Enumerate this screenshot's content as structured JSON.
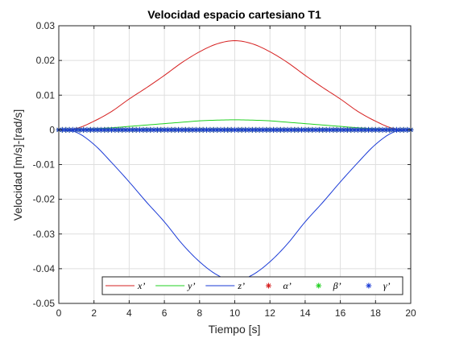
{
  "chart_data": {
    "type": "line",
    "title": "Velocidad espacio cartesiano T1",
    "xlabel": "Tiempo [s]",
    "ylabel": "Velocidad [m/s]-[rad/s]",
    "xlim": [
      0,
      20
    ],
    "ylim": [
      -0.05,
      0.03
    ],
    "xticks": [
      0,
      2,
      4,
      6,
      8,
      10,
      12,
      14,
      16,
      18,
      20
    ],
    "yticks": [
      0.03,
      0.02,
      0.01,
      0,
      -0.01,
      -0.02,
      -0.03,
      -0.04,
      -0.05
    ],
    "xtick_labels": [
      "0",
      "2",
      "4",
      "6",
      "8",
      "10",
      "12",
      "14",
      "16",
      "18",
      "20"
    ],
    "ytick_labels": [
      "0.03",
      "0.02",
      "0.01",
      "0",
      "-0.01",
      "-0.02",
      "-0.03",
      "-0.04",
      "-0.05"
    ],
    "grid": true,
    "legend_location": "bottom",
    "x": [
      0,
      1,
      2,
      3,
      4,
      5,
      6,
      7,
      8,
      9,
      10,
      11,
      12,
      13,
      14,
      15,
      16,
      17,
      18,
      19,
      20
    ],
    "series": [
      {
        "name": "x’",
        "style": "line",
        "color": "#d62020",
        "values": [
          0,
          0.0004,
          0.0025,
          0.0053,
          0.0089,
          0.0122,
          0.0157,
          0.0194,
          0.0225,
          0.0248,
          0.0257,
          0.0248,
          0.0225,
          0.0194,
          0.0157,
          0.0122,
          0.0089,
          0.0053,
          0.0025,
          0.0004,
          0
        ]
      },
      {
        "name": "y’",
        "style": "line",
        "color": "#20d020",
        "values": [
          0,
          5e-05,
          0.0003,
          0.0006,
          0.001,
          0.0014,
          0.0018,
          0.0022,
          0.0026,
          0.0028,
          0.0029,
          0.0028,
          0.0026,
          0.0022,
          0.0018,
          0.0014,
          0.001,
          0.0006,
          0.0003,
          5e-05,
          0
        ]
      },
      {
        "name": "z’",
        "style": "line",
        "color": "#1a3ad6",
        "values": [
          0,
          -0.0007,
          -0.0042,
          -0.0094,
          -0.015,
          -0.0209,
          -0.0265,
          -0.0328,
          -0.038,
          -0.0418,
          -0.0436,
          -0.0418,
          -0.038,
          -0.0328,
          -0.0265,
          -0.0209,
          -0.015,
          -0.0094,
          -0.0042,
          -0.0007,
          0
        ]
      },
      {
        "name": "α’",
        "style": "markers",
        "color": "#d62020",
        "values": [
          0,
          0,
          0,
          0,
          0,
          0,
          0,
          0,
          0,
          0,
          0,
          0,
          0,
          0,
          0,
          0,
          0,
          0,
          0,
          0,
          0
        ]
      },
      {
        "name": "β’",
        "style": "markers",
        "color": "#20d020",
        "values": [
          0,
          0,
          0,
          0,
          0,
          0,
          0,
          0,
          0,
          0,
          0,
          0,
          0,
          0,
          0,
          0,
          0,
          0,
          0,
          0,
          0
        ]
      },
      {
        "name": "γ’",
        "style": "markers",
        "color": "#1a3ad6",
        "values": [
          0,
          0,
          0,
          0,
          0,
          0,
          0,
          0,
          0,
          0,
          0,
          0,
          0,
          0,
          0,
          0,
          0,
          0,
          0,
          0,
          0
        ]
      }
    ]
  }
}
